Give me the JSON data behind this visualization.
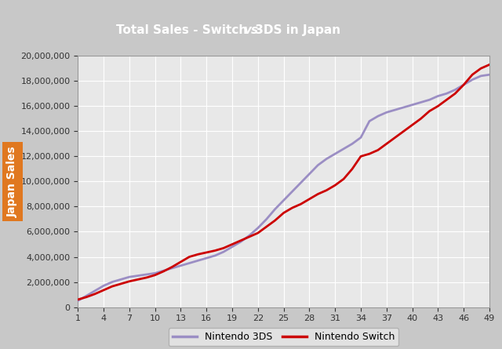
{
  "title_parts": [
    "Total Sales - Switch ",
    "vs",
    " 3DS in Japan"
  ],
  "ylabel": "Japan Sales",
  "xlim": [
    1,
    49
  ],
  "ylim": [
    0,
    20000000
  ],
  "yticks": [
    0,
    2000000,
    4000000,
    6000000,
    8000000,
    10000000,
    12000000,
    14000000,
    16000000,
    18000000,
    20000000
  ],
  "xticks": [
    1,
    4,
    7,
    10,
    13,
    16,
    19,
    22,
    25,
    28,
    31,
    34,
    37,
    40,
    43,
    46,
    49
  ],
  "title_bg_color": "#E07820",
  "title_text_color": "#FFFFFF",
  "plot_bg_color": "#E8E8E8",
  "outer_bg_color": "#C8C8C8",
  "grid_color": "#FFFFFF",
  "line_3ds_color": "#9B8EC4",
  "line_switch_color": "#CC0000",
  "line_width": 2.0,
  "legend_labels": [
    "Nintendo 3DS",
    "Nintendo Switch"
  ],
  "ds3_data": [
    500000,
    900000,
    1300000,
    1700000,
    2000000,
    2200000,
    2400000,
    2500000,
    2600000,
    2700000,
    2900000,
    3100000,
    3300000,
    3500000,
    3700000,
    3900000,
    4100000,
    4400000,
    4800000,
    5200000,
    5700000,
    6300000,
    7000000,
    7800000,
    8500000,
    9200000,
    9900000,
    10600000,
    11300000,
    11800000,
    12200000,
    12600000,
    13000000,
    13500000,
    14800000,
    15200000,
    15500000,
    15700000,
    15900000,
    16100000,
    16300000,
    16500000,
    16800000,
    17000000,
    17300000,
    17700000,
    18100000,
    18400000,
    18500000
  ],
  "switch_data": [
    600000,
    800000,
    1050000,
    1350000,
    1650000,
    1850000,
    2050000,
    2200000,
    2350000,
    2550000,
    2850000,
    3200000,
    3600000,
    4000000,
    4200000,
    4350000,
    4500000,
    4700000,
    5000000,
    5300000,
    5600000,
    5900000,
    6400000,
    6900000,
    7500000,
    7900000,
    8200000,
    8600000,
    9000000,
    9300000,
    9700000,
    10200000,
    11000000,
    12000000,
    12200000,
    12500000,
    13000000,
    13500000,
    14000000,
    14500000,
    15000000,
    15600000,
    16000000,
    16500000,
    17000000,
    17700000,
    18500000,
    19000000,
    19300000
  ]
}
